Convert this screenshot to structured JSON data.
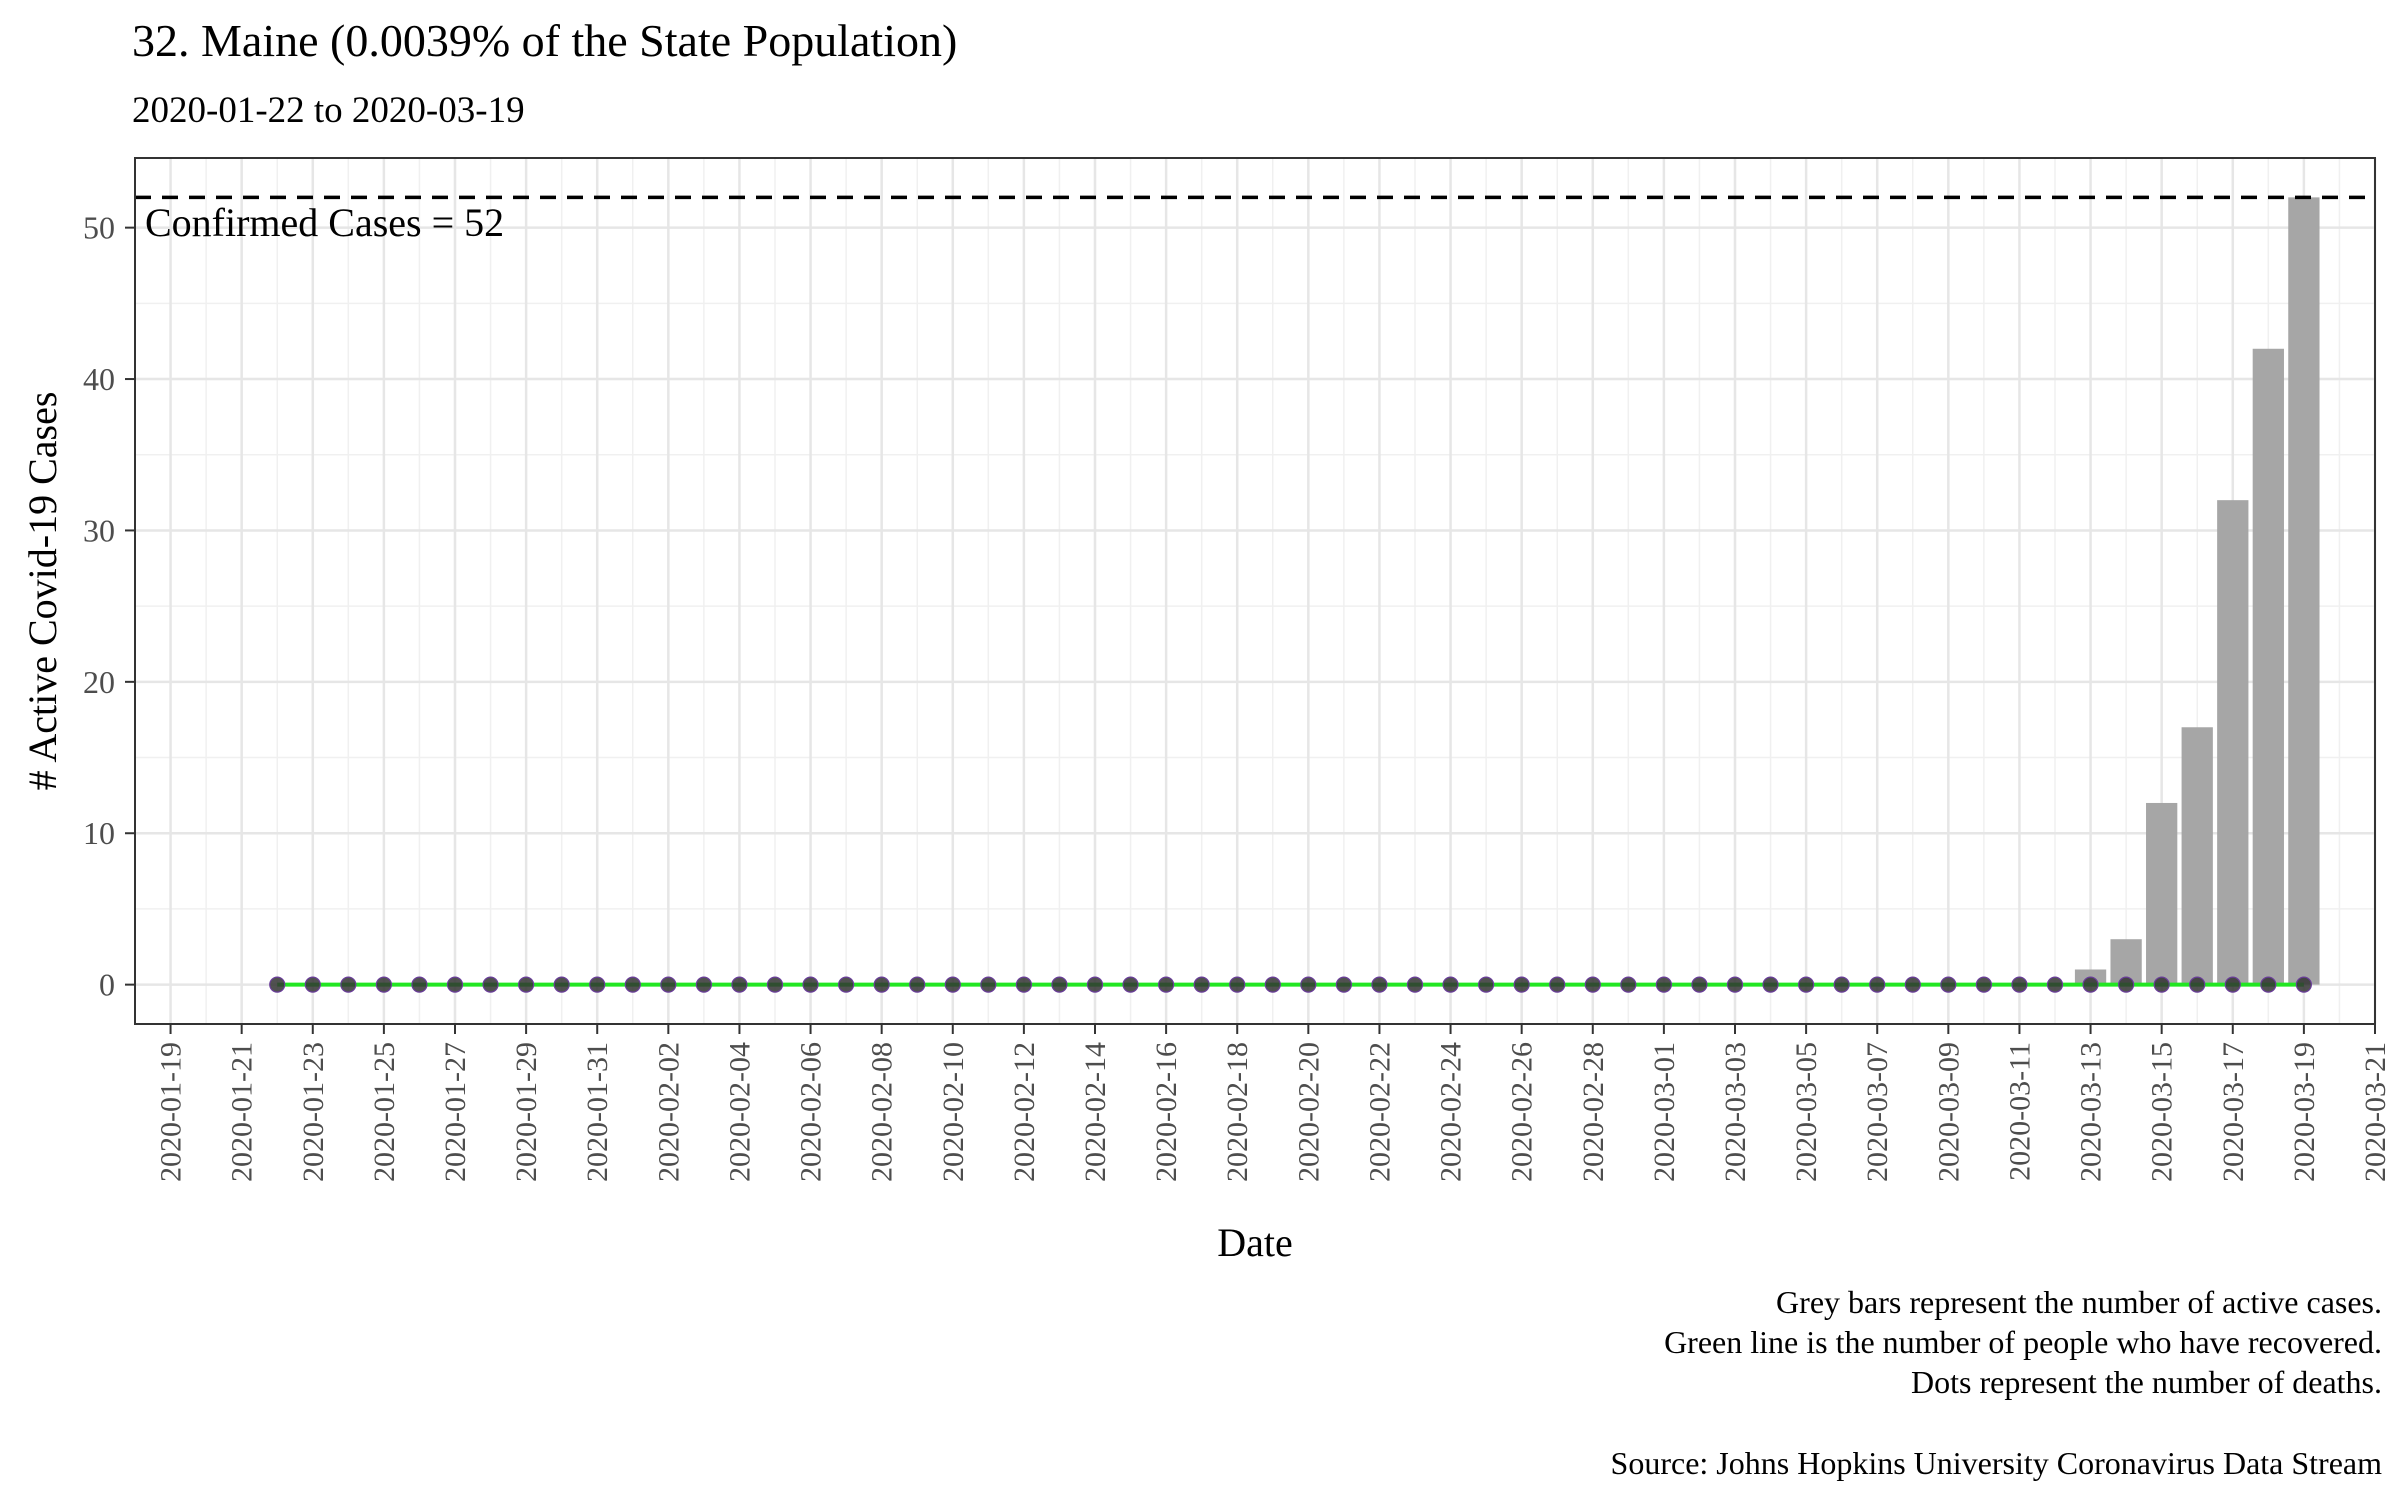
{
  "chart_data": {
    "type": "bar",
    "title": "32. Maine (0.0039% of the State Population)",
    "subtitle": "2020-01-22 to 2020-03-19",
    "xlabel": "Date",
    "ylabel": "# Active Covid-19 Cases",
    "x_range": [
      "2020-01-18",
      "2020-03-21"
    ],
    "x_ticks": [
      "2020-01-19",
      "2020-01-21",
      "2020-01-23",
      "2020-01-25",
      "2020-01-27",
      "2020-01-29",
      "2020-01-31",
      "2020-02-02",
      "2020-02-04",
      "2020-02-06",
      "2020-02-08",
      "2020-02-10",
      "2020-02-12",
      "2020-02-14",
      "2020-02-16",
      "2020-02-18",
      "2020-02-20",
      "2020-02-22",
      "2020-02-24",
      "2020-02-26",
      "2020-02-28",
      "2020-03-01",
      "2020-03-03",
      "2020-03-05",
      "2020-03-07",
      "2020-03-09",
      "2020-03-11",
      "2020-03-13",
      "2020-03-15",
      "2020-03-17",
      "2020-03-19",
      "2020-03-21"
    ],
    "y_ticks": [
      0,
      10,
      20,
      30,
      40,
      50
    ],
    "ylim": [
      -2.6,
      54.6
    ],
    "grid": true,
    "start_date": "2020-01-22",
    "end_date": "2020-03-19",
    "active_cases": {
      "name": "Active cases",
      "color": "#a6a6a6",
      "nonzero": [
        {
          "date": "2020-03-13",
          "value": 1
        },
        {
          "date": "2020-03-14",
          "value": 3
        },
        {
          "date": "2020-03-15",
          "value": 12
        },
        {
          "date": "2020-03-16",
          "value": 17
        },
        {
          "date": "2020-03-17",
          "value": 32
        },
        {
          "date": "2020-03-18",
          "value": 42
        },
        {
          "date": "2020-03-19",
          "value": 52
        }
      ]
    },
    "recovered": {
      "name": "Recovered",
      "color": "#22e622",
      "value_all_days": 0
    },
    "deaths": {
      "name": "Deaths",
      "color": "#333333",
      "value_all_days": 0
    },
    "reference_line": {
      "value": 52,
      "label": "Confirmed Cases = 52",
      "style": "dashed"
    },
    "caption_lines": [
      "Grey bars represent the number of active cases.",
      "Green line is the number of people who have recovered.",
      "Dots represent the number of deaths.",
      "",
      "Source: Johns Hopkins University Coronavirus Data Stream"
    ]
  }
}
